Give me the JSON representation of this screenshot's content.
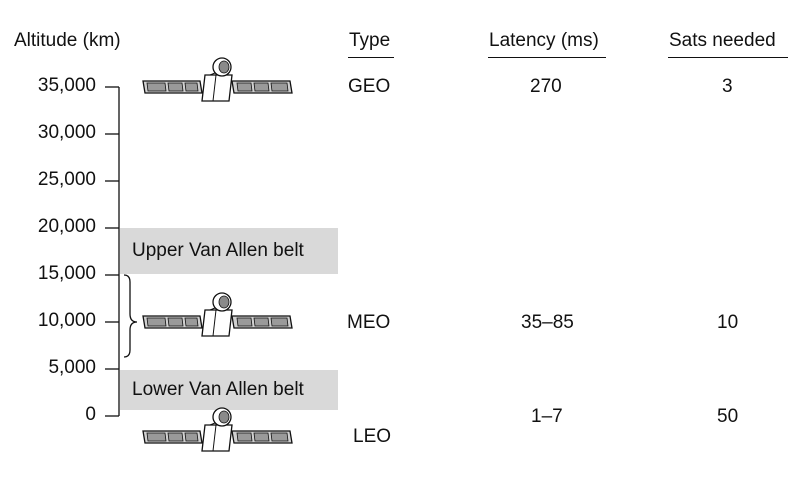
{
  "axis": {
    "label": "Altitude (km)",
    "ticks": [
      {
        "value": 35000,
        "label": "35,000"
      },
      {
        "value": 30000,
        "label": "30,000"
      },
      {
        "value": 25000,
        "label": "25,000"
      },
      {
        "value": 20000,
        "label": "20,000"
      },
      {
        "value": 15000,
        "label": "15,000"
      },
      {
        "value": 10000,
        "label": "10,000"
      },
      {
        "value": 5000,
        "label": "5,000"
      },
      {
        "value": 0,
        "label": "0"
      }
    ]
  },
  "columns": {
    "type": "Type",
    "latency": "Latency (ms)",
    "sats": "Sats needed"
  },
  "belts": {
    "upper": "Upper Van Allen belt",
    "lower": "Lower Van Allen belt"
  },
  "orbits": [
    {
      "type": "GEO",
      "latency": "270",
      "sats": "3"
    },
    {
      "type": "MEO",
      "latency": "35–85",
      "sats": "10"
    },
    {
      "type": "LEO",
      "latency": "1–7",
      "sats": "50"
    }
  ]
}
